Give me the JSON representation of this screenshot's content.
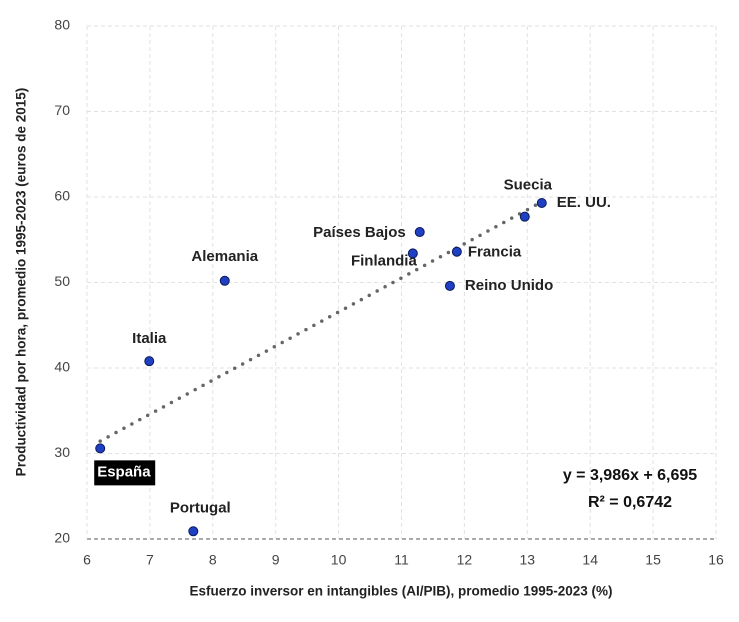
{
  "chart_data": {
    "type": "scatter",
    "x_label": "Esfuerzo inversor en intangibles (AI/PIB), promedio 1995-2023 (%)",
    "y_label": "Productividad por hora, promedio 1995-2023 (euros de 2015)",
    "labels": [
      "España",
      "Italia",
      "Alemania",
      "Portugal",
      "Finlandia",
      "Países Bajos",
      "Francia",
      "Reino Unido",
      "Suecia",
      "EE. UU."
    ],
    "x": [
      6.21,
      6.99,
      8.19,
      7.69,
      11.18,
      11.29,
      11.88,
      11.77,
      12.96,
      13.23
    ],
    "values": [
      30.6,
      40.8,
      50.2,
      20.9,
      53.4,
      55.9,
      53.6,
      49.6,
      57.7,
      59.3
    ],
    "color": "#1f3fc4",
    "xlim": [
      6,
      16
    ],
    "xticks": [
      6,
      7,
      8,
      9,
      10,
      11,
      12,
      13,
      14,
      15,
      16
    ],
    "ylim": [
      20,
      80
    ],
    "yticks": [
      20,
      30,
      40,
      50,
      60,
      70,
      80
    ],
    "grid": true,
    "trendline": {
      "slope": 3.986,
      "intercept": 6.695,
      "label": "y = 3,986x + 6,695",
      "r2": 0.6742,
      "r2_label": "R² = 0,6742"
    }
  }
}
